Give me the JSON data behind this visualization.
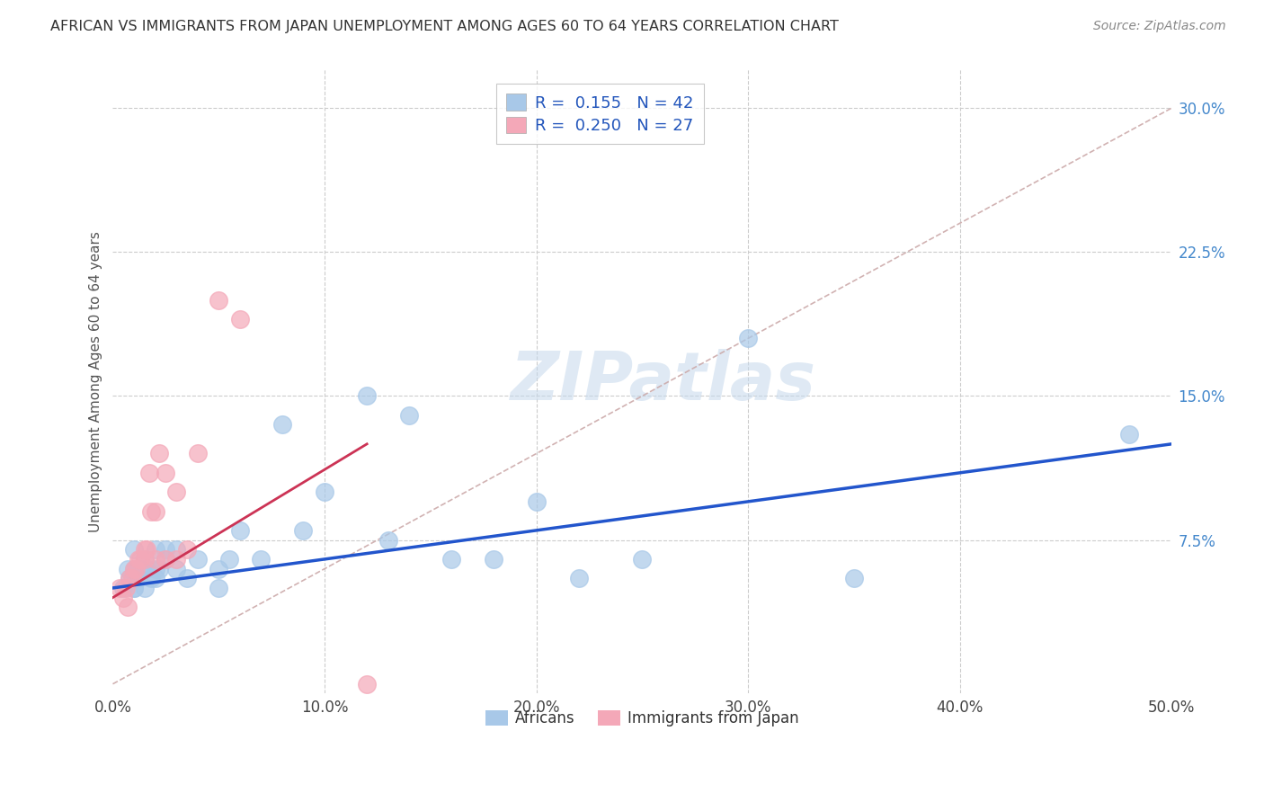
{
  "title": "AFRICAN VS IMMIGRANTS FROM JAPAN UNEMPLOYMENT AMONG AGES 60 TO 64 YEARS CORRELATION CHART",
  "source": "Source: ZipAtlas.com",
  "ylabel": "Unemployment Among Ages 60 to 64 years",
  "xlim": [
    0.0,
    0.5
  ],
  "ylim": [
    -0.005,
    0.32
  ],
  "xticks": [
    0.0,
    0.1,
    0.2,
    0.3,
    0.4,
    0.5
  ],
  "xticklabels": [
    "0.0%",
    "10.0%",
    "20.0%",
    "30.0%",
    "40.0%",
    "50.0%"
  ],
  "yticks": [
    0.0,
    0.075,
    0.15,
    0.225,
    0.3
  ],
  "yticklabels": [
    "",
    "7.5%",
    "15.0%",
    "22.5%",
    "30.0%"
  ],
  "africans_R": 0.155,
  "africans_N": 42,
  "japan_R": 0.25,
  "japan_N": 27,
  "africans_color": "#a8c8e8",
  "japan_color": "#f4a8b8",
  "trend_blue": "#2255cc",
  "trend_pink": "#cc3355",
  "diag_color": "#ccaaaa",
  "legend_text_color": "#2255bb",
  "watermark": "ZIPatlas",
  "background_color": "#ffffff",
  "grid_color": "#cccccc",
  "africans_x": [
    0.005,
    0.007,
    0.008,
    0.01,
    0.01,
    0.01,
    0.01,
    0.012,
    0.013,
    0.015,
    0.015,
    0.016,
    0.018,
    0.02,
    0.02,
    0.02,
    0.022,
    0.025,
    0.025,
    0.03,
    0.03,
    0.035,
    0.04,
    0.05,
    0.05,
    0.055,
    0.06,
    0.07,
    0.08,
    0.09,
    0.1,
    0.12,
    0.13,
    0.14,
    0.16,
    0.18,
    0.2,
    0.22,
    0.25,
    0.3,
    0.35,
    0.48
  ],
  "africans_y": [
    0.05,
    0.06,
    0.055,
    0.05,
    0.06,
    0.07,
    0.05,
    0.055,
    0.06,
    0.065,
    0.05,
    0.06,
    0.055,
    0.06,
    0.055,
    0.07,
    0.06,
    0.07,
    0.065,
    0.07,
    0.06,
    0.055,
    0.065,
    0.06,
    0.05,
    0.065,
    0.08,
    0.065,
    0.135,
    0.08,
    0.1,
    0.15,
    0.075,
    0.14,
    0.065,
    0.065,
    0.095,
    0.055,
    0.065,
    0.18,
    0.055,
    0.13
  ],
  "japan_x": [
    0.003,
    0.005,
    0.006,
    0.007,
    0.008,
    0.009,
    0.01,
    0.011,
    0.012,
    0.013,
    0.015,
    0.015,
    0.016,
    0.017,
    0.018,
    0.02,
    0.02,
    0.022,
    0.025,
    0.025,
    0.03,
    0.03,
    0.035,
    0.04,
    0.05,
    0.06,
    0.12
  ],
  "japan_y": [
    0.05,
    0.045,
    0.05,
    0.04,
    0.055,
    0.055,
    0.06,
    0.06,
    0.065,
    0.065,
    0.07,
    0.065,
    0.07,
    0.11,
    0.09,
    0.065,
    0.09,
    0.12,
    0.11,
    0.065,
    0.065,
    0.1,
    0.07,
    0.12,
    0.2,
    0.19,
    0.0
  ],
  "africans_trend": [
    0.05,
    0.125
  ],
  "japan_trend_x": [
    0.0,
    0.12
  ],
  "japan_trend_y": [
    0.045,
    0.125
  ]
}
